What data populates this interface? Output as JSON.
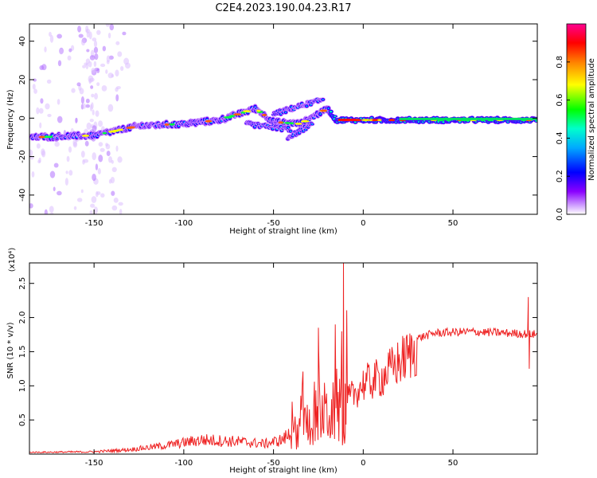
{
  "title": "C2E4.2023.190.04.23.R17",
  "chart_data": [
    {
      "type": "heatmap",
      "xlabel": "Height of straight line (km)",
      "ylabel": "Frequency (Hz)",
      "xlim": [
        -186,
        97
      ],
      "ylim": [
        -50,
        49
      ],
      "x_ticks": [
        "-150",
        "-100",
        "-50",
        "0",
        "50"
      ],
      "y_ticks": [
        "-40",
        "-20",
        "0",
        "20",
        "40"
      ],
      "colorbar": {
        "label": "Normalized spectral amplitude",
        "range": [
          0,
          1
        ],
        "ticks": [
          "0.0",
          "0.2",
          "0.4",
          "0.6",
          "0.8"
        ],
        "colors": [
          "#ffffff",
          "#8a00ff",
          "#0000ff",
          "#00aaff",
          "#00ffcc",
          "#00ff00",
          "#ffff00",
          "#ff8000",
          "#ff0000",
          "#ff0090"
        ]
      },
      "ridge": [
        {
          "x": -186,
          "y": -10
        },
        {
          "x": -150,
          "y": -9
        },
        {
          "x": -125,
          "y": -4
        },
        {
          "x": -100,
          "y": -3
        },
        {
          "x": -80,
          "y": -1
        },
        {
          "x": -60,
          "y": 5
        },
        {
          "x": -50,
          "y": -2
        },
        {
          "x": -35,
          "y": -3
        },
        {
          "x": -20,
          "y": 5
        },
        {
          "x": -15,
          "y": -1
        },
        {
          "x": 0,
          "y": -1
        },
        {
          "x": 50,
          "y": -1
        },
        {
          "x": 97,
          "y": -1
        }
      ],
      "branches": [
        {
          "x": [
            -65,
            -40
          ],
          "y": [
            -3,
            -6
          ]
        },
        {
          "x": [
            -50,
            -22
          ],
          "y": [
            2,
            10
          ]
        },
        {
          "x": [
            -42,
            -28
          ],
          "y": [
            -10,
            -3
          ]
        }
      ]
    },
    {
      "type": "line",
      "xlabel": "Height of straight line (km)",
      "ylabel": "SNR (10 * v/v)",
      "multiplier": "(x10⁴)",
      "xlim": [
        -186,
        97
      ],
      "ylim": [
        0,
        2.8
      ],
      "x_ticks": [
        "-150",
        "-100",
        "-50",
        "0",
        "50"
      ],
      "y_ticks": [
        "0.5",
        "1.0",
        "1.5",
        "2.0",
        "2.5"
      ],
      "color": "#ee2222",
      "envelope": [
        {
          "x": -186,
          "y": 0.03
        },
        {
          "x": -150,
          "y": 0.04
        },
        {
          "x": -130,
          "y": 0.08
        },
        {
          "x": -110,
          "y": 0.15
        },
        {
          "x": -90,
          "y": 0.25
        },
        {
          "x": -70,
          "y": 0.22
        },
        {
          "x": -55,
          "y": 0.18
        },
        {
          "x": -45,
          "y": 0.25
        },
        {
          "x": -35,
          "y": 0.5
        },
        {
          "x": -25,
          "y": 0.8
        },
        {
          "x": -15,
          "y": 0.8
        },
        {
          "x": -8,
          "y": 0.9
        },
        {
          "x": 0,
          "y": 1.15
        },
        {
          "x": 10,
          "y": 1.25
        },
        {
          "x": 20,
          "y": 1.5
        },
        {
          "x": 30,
          "y": 1.72
        },
        {
          "x": 40,
          "y": 1.8
        },
        {
          "x": 60,
          "y": 1.82
        },
        {
          "x": 80,
          "y": 1.8
        },
        {
          "x": 97,
          "y": 1.78
        }
      ],
      "spikes": [
        {
          "x": -25,
          "y": 1.85
        },
        {
          "x": -11,
          "y": 2.8
        },
        {
          "x": -10,
          "y": 0.3
        },
        {
          "x": 92,
          "y": 2.3
        },
        {
          "x": 92.5,
          "y": 1.25
        }
      ]
    }
  ]
}
